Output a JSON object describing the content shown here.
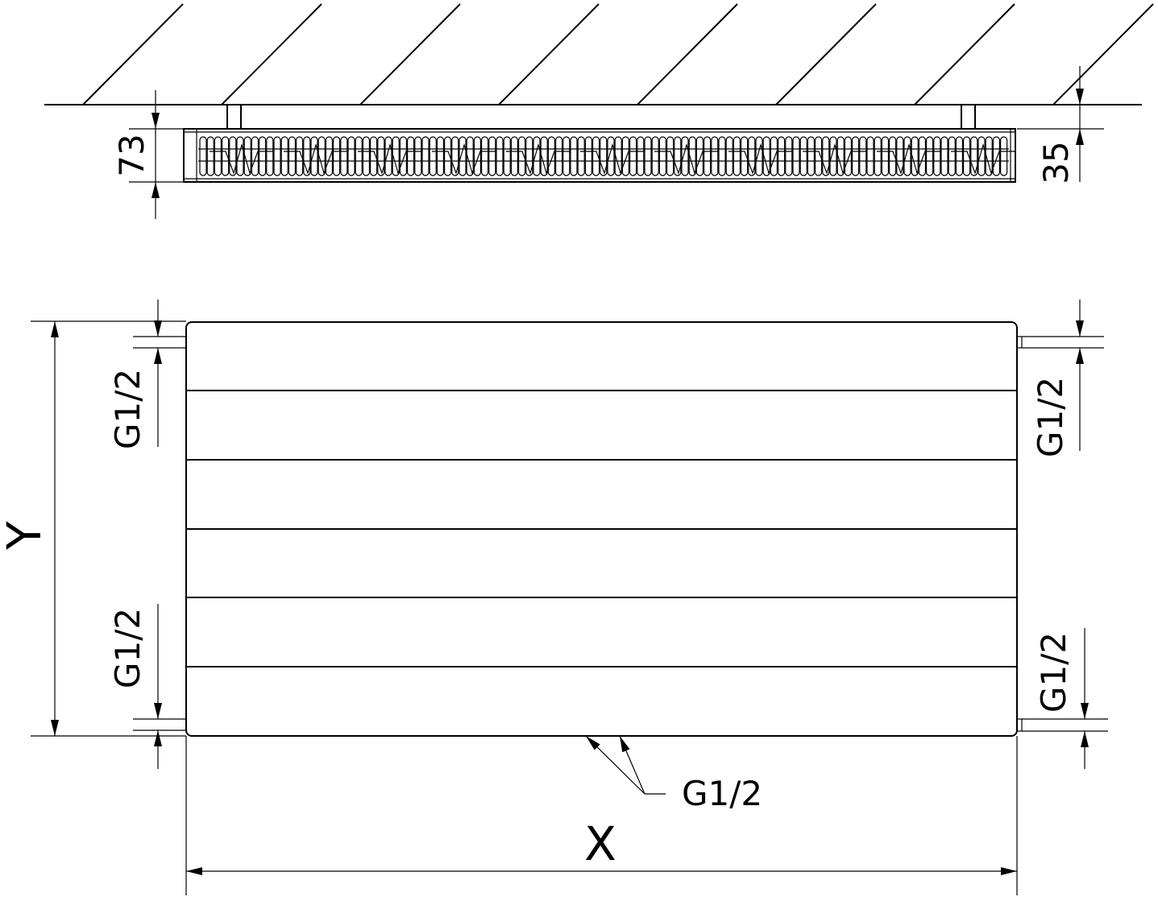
{
  "top_view": {
    "depth_label": "73",
    "wall_gap_label": "35"
  },
  "front_view": {
    "height_label": "Y",
    "width_label": "X",
    "connection_left_top": "G1/2",
    "connection_left_bottom": "G1/2",
    "connection_right_top": "G1/2",
    "connection_right_bottom": "G1/2",
    "connection_bottom": "G1/2"
  }
}
